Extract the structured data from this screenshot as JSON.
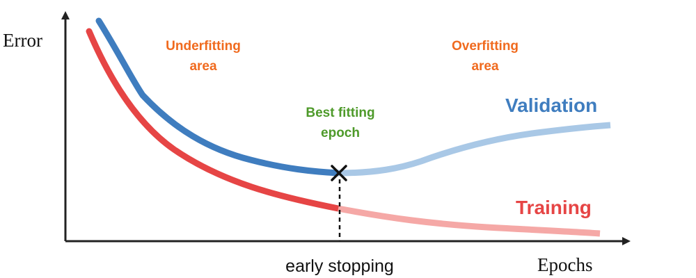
{
  "axes": {
    "y_label": "Error",
    "x_label": "Epochs"
  },
  "regions": {
    "underfitting": {
      "line1": "Underfitting",
      "line2": "area"
    },
    "overfitting": {
      "line1": "Overfitting",
      "line2": "area"
    },
    "best": {
      "line1": "Best fitting",
      "line2": "epoch"
    }
  },
  "curves": {
    "validation": {
      "label": "Validation"
    },
    "training": {
      "label": "Training"
    }
  },
  "marker": {
    "caption": "early stopping"
  },
  "colors": {
    "axis": "#222222",
    "region_label": "#f06a1e",
    "best_label": "#4e9a2a",
    "validation_dark": "#3f7dbf",
    "validation_light": "#a9c8e6",
    "training_dark": "#e64545",
    "training_light": "#f5a8a6",
    "marker": "#111111"
  }
}
